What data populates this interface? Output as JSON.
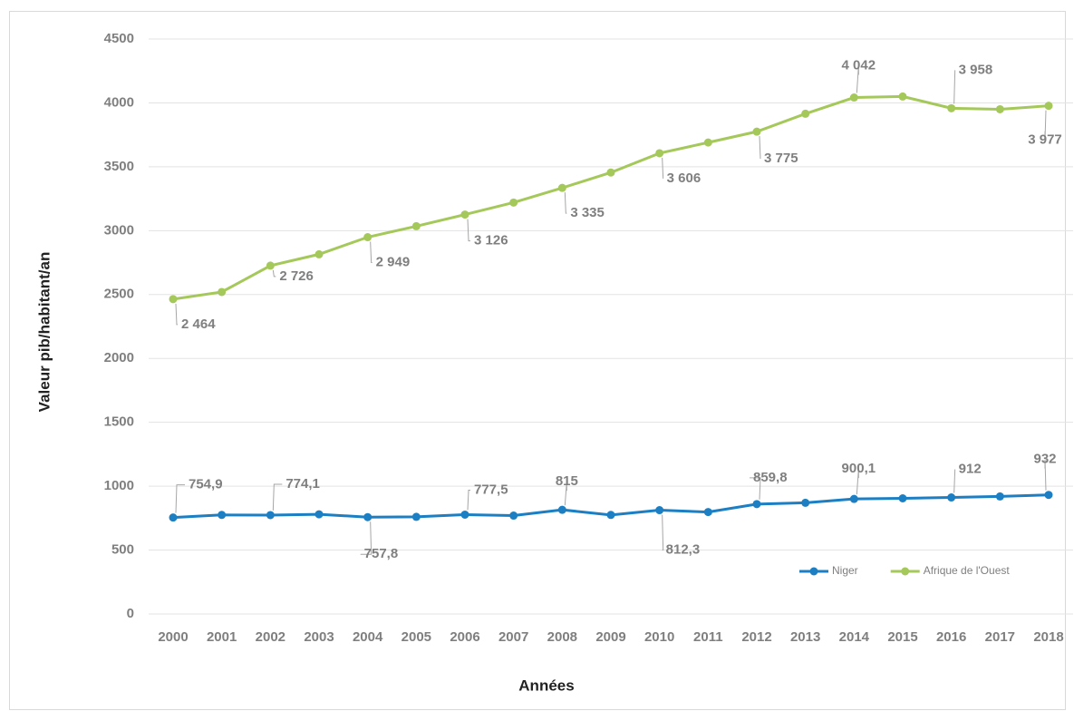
{
  "chart_data": {
    "type": "line",
    "y_label": "Valeur pib/habitant/an",
    "x_label": "Années",
    "categories": [
      "2000",
      "2001",
      "2002",
      "2003",
      "2004",
      "2005",
      "2006",
      "2007",
      "2008",
      "2009",
      "2010",
      "2011",
      "2012",
      "2013",
      "2014",
      "2015",
      "2016",
      "2017",
      "2018"
    ],
    "ylim": [
      0,
      4500
    ],
    "yticks": [
      0,
      500,
      1000,
      1500,
      2000,
      2500,
      3000,
      3500,
      4000,
      4500
    ],
    "grid": true,
    "legend": "lower right",
    "series": [
      {
        "name": "Niger",
        "color": "#1c7fc3",
        "values": [
          754.9,
          775,
          774.1,
          780,
          757.8,
          760,
          777.5,
          770,
          815,
          775,
          812.3,
          798,
          859.8,
          870,
          900.1,
          905,
          912,
          920,
          932
        ],
        "value_labels": [
          "754,9",
          null,
          "774,1",
          null,
          "757,8",
          null,
          "777,5",
          null,
          "815",
          null,
          "812,3",
          null,
          "859,8",
          null,
          "900,1",
          null,
          "912",
          null,
          "932"
        ]
      },
      {
        "name": "Afrique de l'Ouest",
        "color": "#a5c85a",
        "values": [
          2464,
          2520,
          2726,
          2815,
          2949,
          3035,
          3126,
          3220,
          3335,
          3455,
          3606,
          3690,
          3775,
          3915,
          4042,
          4050,
          3958,
          3950,
          3977
        ],
        "value_labels": [
          "2 464",
          null,
          "2 726",
          null,
          "2 949",
          null,
          "3 126",
          null,
          "3 335",
          null,
          "3 606",
          null,
          "3 775",
          null,
          "4 042",
          null,
          "3 958",
          null,
          "3 977"
        ]
      }
    ]
  }
}
